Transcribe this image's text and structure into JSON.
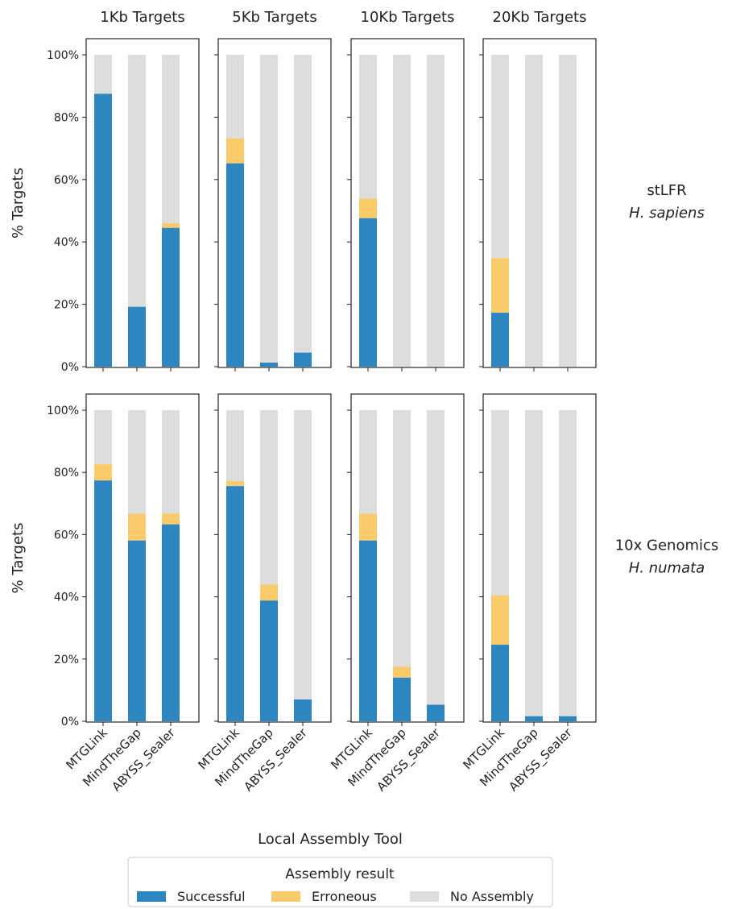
{
  "chart_data": {
    "type": "bar",
    "stacked": true,
    "columns": [
      "1Kb Targets",
      "5Kb Targets",
      "10Kb Targets",
      "20Kb Targets"
    ],
    "rows": [
      {
        "label_line1": "stLFR",
        "label_line2": "H. sapiens"
      },
      {
        "label_line1": "10x Genomics",
        "label_line2": "H. numata"
      }
    ],
    "categories": [
      "MTGLink",
      "MindTheGap",
      "ABYSS_Sealer"
    ],
    "ylabel": "% Targets",
    "xlabel": "Local Assembly Tool",
    "ylim": [
      0,
      100
    ],
    "yticks": [
      0,
      20,
      40,
      60,
      80,
      100
    ],
    "ytick_labels": [
      "0%",
      "20%",
      "40%",
      "60%",
      "80%",
      "100%"
    ],
    "legend": {
      "title": "Assembly result",
      "placement": "bottom-center",
      "entries": [
        "Successful",
        "Erroneous",
        "No Assembly"
      ]
    },
    "colors": {
      "Successful": "#2e86c1",
      "Erroneous": "#f9cb6b",
      "No Assembly": "#dddddd"
    },
    "panels": [
      {
        "row": 0,
        "col": 0,
        "successful": [
          87.5,
          19.2,
          44.5
        ],
        "erroneous": [
          0,
          0,
          1.5
        ]
      },
      {
        "row": 0,
        "col": 1,
        "successful": [
          65.2,
          1.3,
          4.5
        ],
        "erroneous": [
          8.0,
          0,
          0
        ]
      },
      {
        "row": 0,
        "col": 2,
        "successful": [
          47.6,
          0,
          0
        ],
        "erroneous": [
          6.3,
          0,
          0
        ]
      },
      {
        "row": 0,
        "col": 3,
        "successful": [
          17.3,
          0,
          0
        ],
        "erroneous": [
          17.5,
          0,
          0
        ]
      },
      {
        "row": 1,
        "col": 0,
        "successful": [
          77.4,
          58.1,
          63.3
        ],
        "erroneous": [
          5.2,
          8.6,
          3.5
        ]
      },
      {
        "row": 1,
        "col": 1,
        "successful": [
          75.6,
          38.8,
          7.0
        ],
        "erroneous": [
          1.6,
          5.1,
          0
        ]
      },
      {
        "row": 1,
        "col": 2,
        "successful": [
          58.1,
          14.0,
          5.3
        ],
        "erroneous": [
          8.6,
          3.5,
          0
        ]
      },
      {
        "row": 1,
        "col": 3,
        "successful": [
          24.6,
          1.6,
          1.6
        ],
        "erroneous": [
          15.9,
          0,
          0
        ]
      }
    ]
  }
}
